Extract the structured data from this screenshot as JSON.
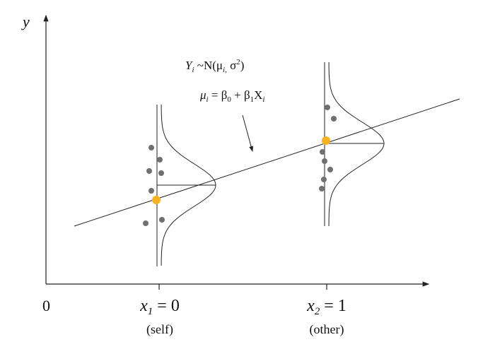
{
  "axis": {
    "y_label": "y",
    "origin_label": "0"
  },
  "formula": {
    "distribution": {
      "y": "Y",
      "y_sub": "i",
      "body": " ~N(μ",
      "mu_sub": "i,",
      "sigma": " σ",
      "sigma_sup": "2",
      "close": ")"
    },
    "mean": {
      "mu": "μ",
      "mu_sub": "i",
      "eq": " = β",
      "b0_sub": "0",
      "plus": " + β",
      "b1_sub": "1",
      "x": "X",
      "x_sub": "i"
    }
  },
  "groups": [
    {
      "x": "x",
      "x_sub": "1",
      "value": " = 0",
      "caption": "(self)"
    },
    {
      "x": "x",
      "x_sub": "2",
      "value": " = 1",
      "caption": "(other)"
    }
  ]
}
